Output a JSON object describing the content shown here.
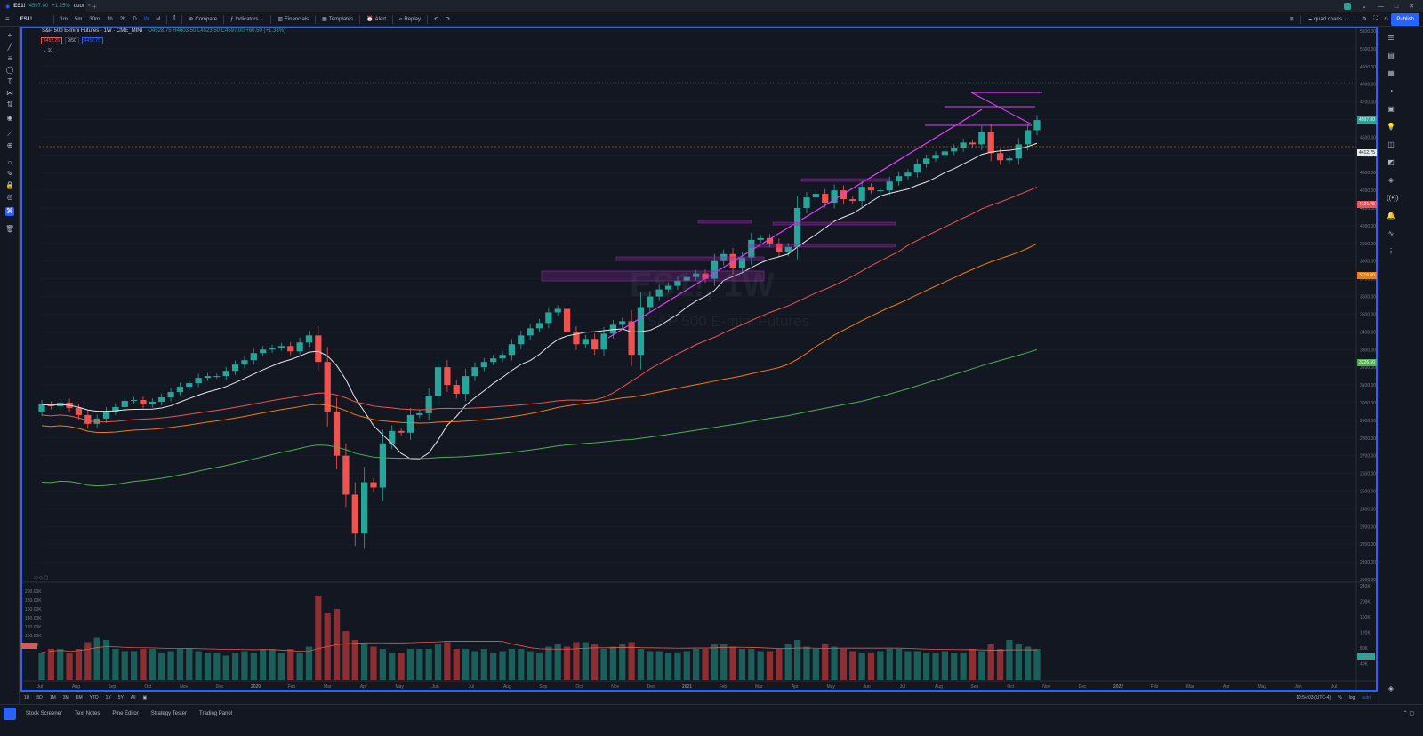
{
  "tab": {
    "symbol": "ES1!",
    "price": "4597.00",
    "change": "+1.25%",
    "label_suffix": "quot"
  },
  "toolbar": {
    "symbol": "ES1!",
    "intervals": [
      "1m",
      "5m",
      "30m",
      "1h",
      "2h",
      "D",
      "W",
      "M"
    ],
    "compare_label": "Compare",
    "indicators_label": "Indicators",
    "financials_label": "Financials",
    "templates_label": "Templates",
    "alert_label": "Alert",
    "replay_label": "Replay",
    "layout_label": "quad charts",
    "publish_label": "Publish"
  },
  "legend": {
    "title": "S&P 500 E-mini Futures · 1W · CME_MINI",
    "ohlc": "O4528.75 H4603.50 L4523.50 C4597.00 +60.50 (+1.33%)",
    "ma_values": [
      "4452.25",
      "9/50",
      "4452.75"
    ],
    "ind_count": "10"
  },
  "watermark": {
    "symbol": "ES1!, 1W",
    "name": "S&P 500 E-mini Futures"
  },
  "price_axis": {
    "ticks": [
      "5100.00",
      "5000.00",
      "4900.00",
      "4800.00",
      "4700.00",
      "4600.00",
      "4500.00",
      "4400.00",
      "4300.00",
      "4200.00",
      "4100.00",
      "4000.00",
      "3900.00",
      "3800.00",
      "3700.00",
      "3600.00",
      "3500.00",
      "3400.00",
      "3300.00",
      "3200.00",
      "3100.00",
      "3000.00",
      "2900.00",
      "2800.00",
      "2700.00",
      "2600.00",
      "2500.00",
      "2400.00",
      "2300.00",
      "2200.00",
      "2100.00",
      "2000.00"
    ],
    "badges": [
      {
        "label": "4597.00",
        "color": "#26a69a"
      },
      {
        "label": "4412.25",
        "color": "#e8e8e8"
      },
      {
        "label": "4412.75",
        "color": "#e8e8e8"
      },
      {
        "label": "4121.75",
        "color": "#ef5350"
      },
      {
        "label": "3716.00",
        "color": "#f57c00"
      },
      {
        "label": "3226.50",
        "color": "#4caf50"
      }
    ]
  },
  "volume_axis": {
    "ticks": [
      "200.00K",
      "180.00K",
      "160.00K",
      "140.00K",
      "120.00K",
      "100.00K",
      "80.00K"
    ],
    "badge": "112.87"
  },
  "volume_right_axis": {
    "ticks": [
      "240K",
      "208K",
      "160K",
      "120K",
      "80K",
      "40K"
    ],
    "badge": "1.91M"
  },
  "time_axis": [
    "Jul",
    "Aug",
    "Sep",
    "Oct",
    "Nov",
    "Dec",
    "2020",
    "Feb",
    "Mar",
    "Apr",
    "May",
    "Jun",
    "Jul",
    "Aug",
    "Sep",
    "Oct",
    "Nov",
    "Dec",
    "2021",
    "Feb",
    "Mar",
    "Apr",
    "May",
    "Jun",
    "Jul",
    "Aug",
    "Sep",
    "Oct",
    "Nov",
    "Dec",
    "2022",
    "Feb",
    "Mar",
    "Apr",
    "May",
    "Jun",
    "Jul"
  ],
  "bottom": {
    "ranges": [
      "1D",
      "5D",
      "1M",
      "3M",
      "6M",
      "YTD",
      "1Y",
      "5Y",
      "All"
    ],
    "clock": "10:54:03 (UTC-4)",
    "pct": "%",
    "log": "log",
    "auto": "auto"
  },
  "panels": [
    "Stock Screener",
    "Text Notes",
    "Pine Editor",
    "Strategy Tester",
    "Trading Panel"
  ],
  "chart_data": {
    "type": "candlestick",
    "title": "S&P 500 E-mini Futures · 1W · CME_MINI",
    "ylim": [
      2000,
      5100
    ],
    "x_range": [
      "2019-07",
      "2022-07"
    ],
    "closes": [
      2990,
      2980,
      3000,
      2970,
      2930,
      2880,
      2910,
      2950,
      2975,
      3010,
      3015,
      2990,
      3005,
      3030,
      3060,
      3090,
      3110,
      3140,
      3150,
      3150,
      3180,
      3215,
      3240,
      3280,
      3300,
      3310,
      3320,
      3290,
      3340,
      3380,
      3230,
      2950,
      2700,
      2480,
      2260,
      2550,
      2520,
      2770,
      2840,
      2830,
      2930,
      2940,
      3040,
      3200,
      3100,
      3050,
      3150,
      3200,
      3230,
      3250,
      3270,
      3330,
      3380,
      3420,
      3450,
      3510,
      3530,
      3400,
      3330,
      3360,
      3300,
      3390,
      3440,
      3460,
      3270,
      3540,
      3600,
      3640,
      3660,
      3690,
      3710,
      3730,
      3700,
      3800,
      3840,
      3760,
      3820,
      3920,
      3930,
      3900,
      3850,
      3880,
      4100,
      4160,
      4180,
      4130,
      4200,
      4150,
      4140,
      4220,
      4200,
      4200,
      4250,
      4280,
      4300,
      4350,
      4380,
      4400,
      4420,
      4440,
      4470,
      4460,
      4530,
      4410,
      4370,
      4380,
      4460,
      4540,
      4597
    ],
    "opens": [
      2950,
      2990,
      2980,
      3000,
      2970,
      2930,
      2880,
      2910,
      2950,
      2975,
      3010,
      3015,
      2990,
      3005,
      3030,
      3060,
      3090,
      3110,
      3140,
      3150,
      3150,
      3180,
      3215,
      3240,
      3280,
      3300,
      3310,
      3320,
      3290,
      3340,
      3380,
      3230,
      2950,
      2700,
      2480,
      2260,
      2550,
      2520,
      2770,
      2840,
      2830,
      2930,
      2940,
      3040,
      3200,
      3100,
      3050,
      3150,
      3200,
      3230,
      3250,
      3270,
      3330,
      3380,
      3420,
      3450,
      3510,
      3530,
      3400,
      3330,
      3360,
      3300,
      3390,
      3440,
      3460,
      3270,
      3540,
      3600,
      3640,
      3660,
      3690,
      3710,
      3730,
      3700,
      3800,
      3840,
      3760,
      3820,
      3920,
      3930,
      3900,
      3850,
      3880,
      4100,
      4160,
      4180,
      4130,
      4200,
      4150,
      4140,
      4220,
      4200,
      4200,
      4250,
      4280,
      4300,
      4350,
      4380,
      4400,
      4420,
      4440,
      4470,
      4460,
      4530,
      4410,
      4370,
      4380,
      4460,
      4540
    ],
    "volume_values": [
      60,
      70,
      70,
      60,
      70,
      85,
      95,
      90,
      70,
      65,
      65,
      70,
      70,
      60,
      65,
      70,
      70,
      65,
      60,
      60,
      55,
      60,
      65,
      60,
      70,
      70,
      60,
      70,
      60,
      75,
      190,
      150,
      160,
      110,
      90,
      80,
      75,
      70,
      60,
      60,
      70,
      70,
      70,
      80,
      85,
      70,
      70,
      65,
      70,
      60,
      65,
      70,
      70,
      65,
      60,
      75,
      80,
      75,
      85,
      85,
      80,
      70,
      75,
      80,
      85,
      70,
      65,
      65,
      60,
      60,
      65,
      70,
      70,
      80,
      80,
      75,
      70,
      70,
      65,
      65,
      70,
      80,
      90,
      75,
      70,
      80,
      75,
      70,
      65,
      60,
      60,
      65,
      70,
      70,
      65,
      65,
      60,
      60,
      65,
      60,
      60,
      70,
      65,
      80,
      70,
      90,
      80,
      75,
      70
    ]
  }
}
